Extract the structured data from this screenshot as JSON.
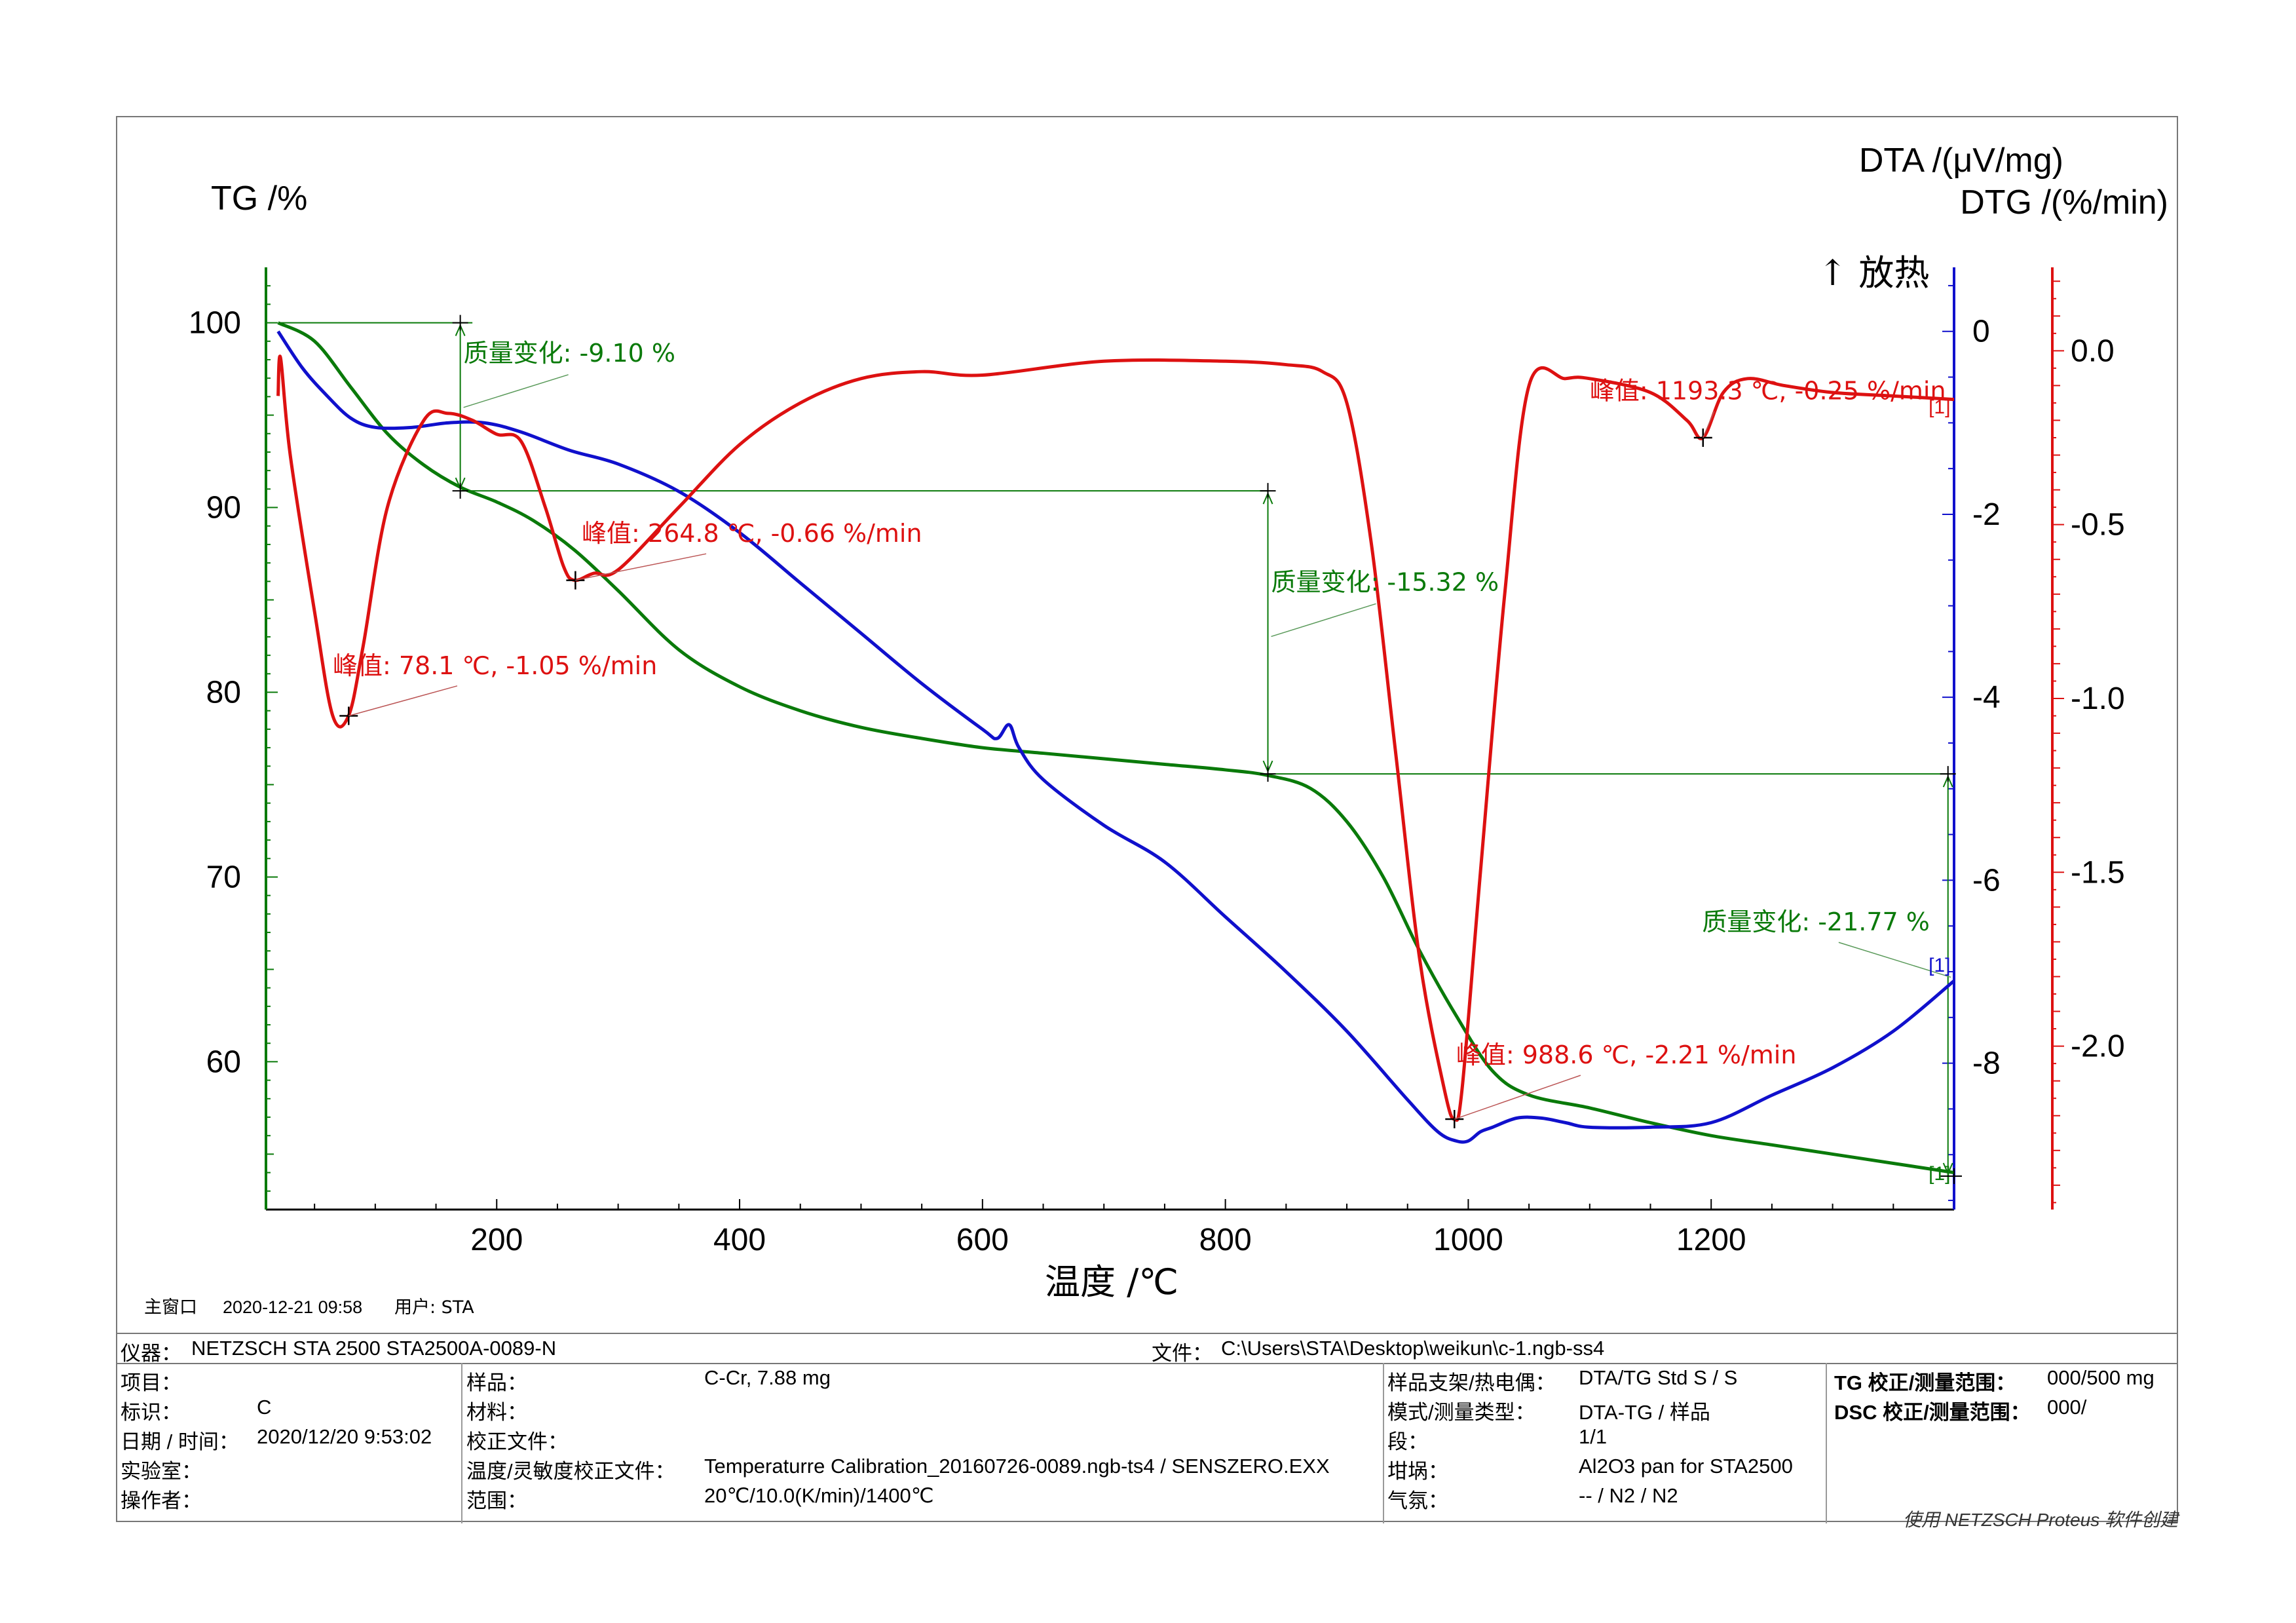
{
  "chart_data": {
    "type": "line",
    "xlabel": "温度 /℃",
    "y_left_label": "TG /%",
    "y_right_label_1": "DTA /(μV/mg)",
    "y_right_label_2": "DTG /(%/min)",
    "exo_label": "↑ 放热",
    "xlim": [
      10,
      1400
    ],
    "x_ticks": [
      200,
      400,
      600,
      800,
      1000,
      1200
    ],
    "ylim_tg": [
      52,
      103
    ],
    "y_ticks_tg": [
      100,
      90,
      80,
      70,
      60
    ],
    "ylim_dta": [
      -9.6,
      0.7
    ],
    "y_ticks_dta": [
      0,
      -2,
      -4,
      -6,
      -8
    ],
    "ylim_dtg": [
      -2.47,
      0.24
    ],
    "y_ticks_dtg": [
      "0.0",
      "-0.5",
      "-1.0",
      "-1.5",
      "-2.0"
    ],
    "series": [
      {
        "axis": "tg",
        "color": "#0a7a0a",
        "x": [
          20,
          50,
          80,
          110,
          140,
          170,
          200,
          230,
          264,
          300,
          350,
          400,
          450,
          500,
          550,
          600,
          650,
          700,
          750,
          800,
          835,
          870,
          900,
          930,
          960,
          990,
          1020,
          1050,
          1100,
          1150,
          1200,
          1250,
          1300,
          1350,
          1400
        ],
        "y": [
          100,
          99,
          96.5,
          94,
          92.3,
          91.1,
          90.3,
          89.3,
          87.7,
          85.5,
          82.3,
          80.3,
          79,
          78.1,
          77.5,
          77,
          76.7,
          76.4,
          76.1,
          75.8,
          75.5,
          74.8,
          73,
          70,
          66,
          62.5,
          59.5,
          58.2,
          57.5,
          56.7,
          56,
          55.5,
          55,
          54.5,
          54
        ]
      },
      {
        "axis": "dta",
        "color": "#1010cc",
        "x": [
          20,
          40,
          60,
          80,
          100,
          130,
          160,
          190,
          220,
          260,
          300,
          350,
          400,
          450,
          500,
          550,
          600,
          612,
          622,
          630,
          650,
          700,
          750,
          800,
          850,
          900,
          950,
          975,
          990,
          1000,
          1010,
          1020,
          1040,
          1060,
          1080,
          1100,
          1150,
          1200,
          1250,
          1300,
          1350,
          1400
        ],
        "y": [
          0,
          -0.4,
          -0.7,
          -0.95,
          -1.05,
          -1.05,
          -1.0,
          -1.0,
          -1.1,
          -1.3,
          -1.45,
          -1.75,
          -2.2,
          -2.75,
          -3.3,
          -3.85,
          -4.35,
          -4.45,
          -4.3,
          -4.55,
          -4.9,
          -5.4,
          -5.8,
          -6.4,
          -7.0,
          -7.65,
          -8.4,
          -8.75,
          -8.85,
          -8.85,
          -8.75,
          -8.7,
          -8.6,
          -8.6,
          -8.65,
          -8.7,
          -8.7,
          -8.65,
          -8.35,
          -8.05,
          -7.65,
          -7.1
        ]
      },
      {
        "axis": "dtg",
        "color": "#dd1111",
        "x": [
          20,
          22,
          30,
          50,
          65,
          78,
          90,
          110,
          140,
          160,
          180,
          200,
          220,
          240,
          255,
          264,
          280,
          300,
          350,
          400,
          450,
          500,
          550,
          600,
          700,
          800,
          850,
          880,
          900,
          920,
          940,
          960,
          980,
          988.6,
          995,
          1010,
          1030,
          1050,
          1080,
          1100,
          1150,
          1180,
          1193.3,
          1210,
          1230,
          1260,
          1300,
          1350,
          1400
        ],
        "y": [
          -0.13,
          -0.02,
          -0.3,
          -0.75,
          -1.05,
          -1.05,
          -0.85,
          -0.45,
          -0.2,
          -0.18,
          -0.2,
          -0.24,
          -0.26,
          -0.45,
          -0.62,
          -0.66,
          -0.64,
          -0.63,
          -0.45,
          -0.27,
          -0.15,
          -0.08,
          -0.06,
          -0.07,
          -0.03,
          -0.03,
          -0.04,
          -0.06,
          -0.15,
          -0.55,
          -1.15,
          -1.75,
          -2.12,
          -2.21,
          -2.12,
          -1.5,
          -0.7,
          -0.1,
          -0.08,
          -0.08,
          -0.12,
          -0.2,
          -0.25,
          -0.12,
          -0.08,
          -0.1,
          -0.12,
          -0.13,
          -0.14
        ]
      }
    ],
    "tg_steps": [
      {
        "label": "质量变化: -9.10 %",
        "x": 170,
        "y_top": 100,
        "y_bottom": 90.9
      },
      {
        "label": "质量变化: -15.32 %",
        "x": 835,
        "y_top": 90.9,
        "y_bottom": 75.58
      },
      {
        "label": "质量变化: -21.77 %",
        "x": 1395,
        "y_top": 75.58,
        "y_bottom": 53.81
      }
    ],
    "peaks": [
      {
        "label": "峰值: 78.1 ℃, -1.05 %/min",
        "x": 78.1,
        "y": -1.05
      },
      {
        "label": "峰值: 264.8 ℃, -0.66 %/min",
        "x": 264.8,
        "y": -0.66
      },
      {
        "label": "峰值: 988.6 ℃, -2.21 %/min",
        "x": 988.6,
        "y": -2.21
      },
      {
        "label": "峰值: 1193.3 ℃, -0.25 %/min",
        "x": 1193.3,
        "y": -0.25
      }
    ],
    "curve_tags": [
      {
        "text": "[1]",
        "color": "#dd1111"
      },
      {
        "text": "[1]",
        "color": "#1010cc"
      },
      {
        "text": "[1]",
        "color": "#0a7a0a"
      }
    ]
  },
  "header": {
    "window": "主窗口",
    "datetime": "2020-12-21 09:58",
    "user": "用户: STA"
  },
  "info": {
    "instrument_label": "仪器：",
    "instrument": "NETZSCH STA 2500 STA2500A-0089-N",
    "file_label": "文件：",
    "file": "C:\\Users\\STA\\Desktop\\weikun\\c-1.ngb-ss4",
    "project_label": "项目：",
    "project": "",
    "id_label": "标识：",
    "id": "C",
    "date_label": "日期 / 时间：",
    "date": "2020/12/20 9:53:02",
    "lab_label": "实验室：",
    "lab": "",
    "operator_label": "操作者：",
    "operator": "",
    "sample_label": "样品：",
    "sample": "C-Cr, 7.88 mg",
    "material_label": "材料：",
    "material": "",
    "calfile_label": "校正文件：",
    "calfile": "",
    "tempcal_label": "温度/灵敏度校正文件：",
    "tempcal": "Temperaturre Calibration_20160726-0089.ngb-ts4 / SENSZERO.EXX",
    "range_label": "范围：",
    "range": "20℃/10.0(K/min)/1400℃",
    "holder_label": "样品支架/热电偶：",
    "holder": "DTA/TG Std S / S",
    "mode_label": "模式/测量类型：",
    "mode": "DTA-TG / 样品",
    "segment_label": "段：",
    "segment": "1/1",
    "crucible_label": "坩埚：",
    "crucible": "Al2O3 pan for STA2500",
    "gas_label": "气氛：",
    "gas": "-- / N2 / N2",
    "tgcal_label": "TG 校正/测量范围：",
    "tgcal": "000/500 mg",
    "dsccal_label": "DSC 校正/测量范围：",
    "dsccal": "000/"
  },
  "footer": "使用 NETZSCH Proteus 软件创建"
}
